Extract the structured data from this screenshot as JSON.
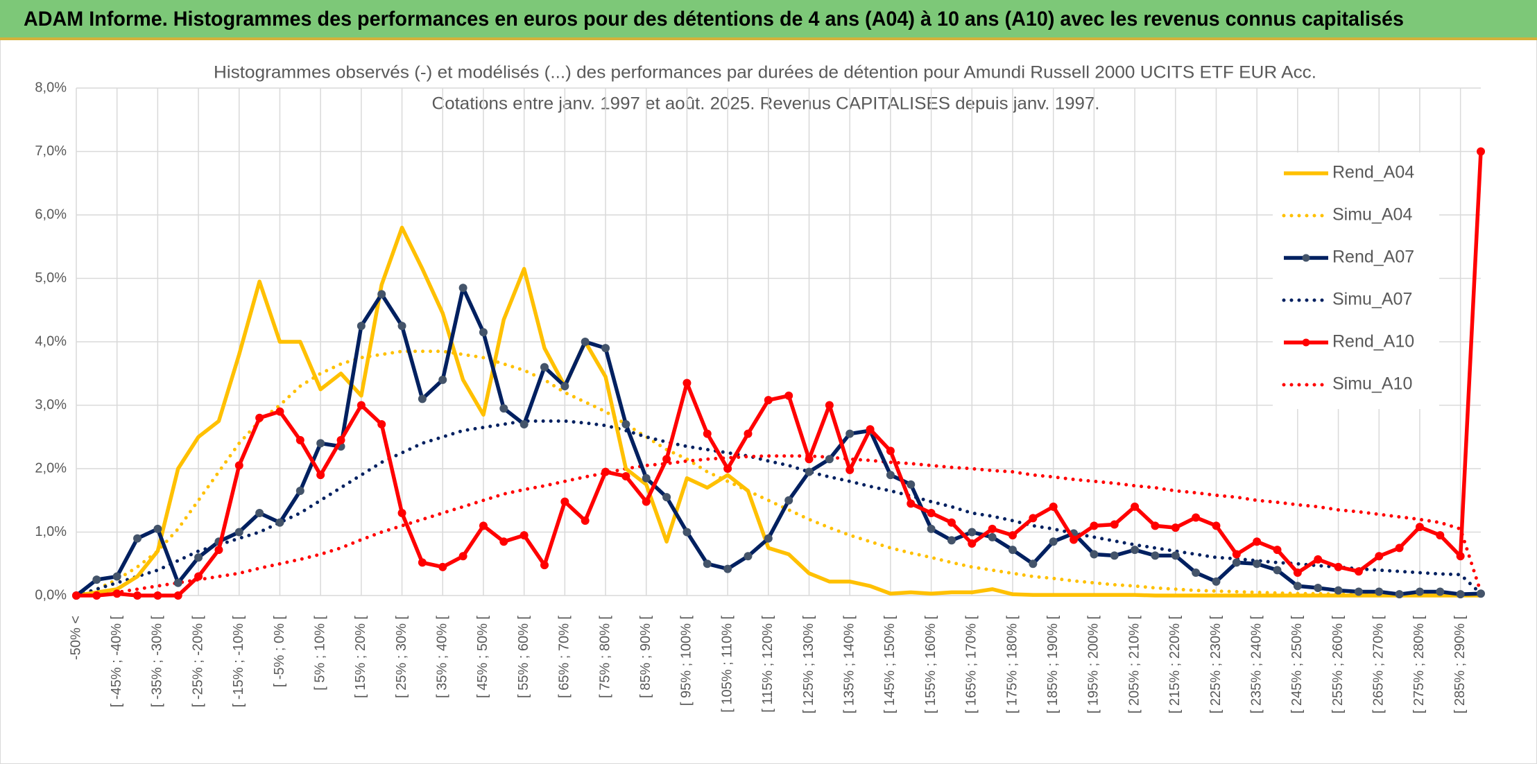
{
  "header": {
    "title": "ADAM Informe. Histogrammes des performances en euros pour des détentions de 4 ans (A04) à 10 ans (A10) avec les revenus connus capitalisés"
  },
  "chart_data": {
    "type": "line",
    "title": "Histogrammes observés (-) et modélisés (...) des performances par durées de détention pour Amundi Russell 2000 UCITS ETF EUR Acc.",
    "subtitle": "Cotations entre janv. 1997 et août. 2025. Revenus CAPITALISES depuis janv. 1997.",
    "categories": [
      "-50% <",
      null,
      "[ -45% ; -40% [",
      null,
      "[ -35% ; -30% [",
      null,
      "[ -25% ; -20% [",
      null,
      "[ -15% ; -10% [",
      null,
      "[ -5% ; 0% [",
      null,
      "[ 5% ; 10% [",
      null,
      "[ 15% ; 20% [",
      null,
      "[ 25% ; 30% [",
      null,
      "[ 35% ; 40% [",
      null,
      "[ 45% ; 50% [",
      null,
      "[ 55% ; 60% [",
      null,
      "[ 65% ; 70% [",
      null,
      "[ 75% ; 80% [",
      null,
      "[ 85% ; 90% [",
      null,
      "[ 95% ; 100% [",
      null,
      "[ 105% ; 110% [",
      null,
      "[ 115% ; 120% [",
      null,
      "[ 125% ; 130% [",
      null,
      "[ 135% ; 140% [",
      null,
      "[ 145% ; 150% [",
      null,
      "[ 155% ; 160% [",
      null,
      "[ 165% ; 170% [",
      null,
      "[ 175% ; 180% [",
      null,
      "[ 185% ; 190% [",
      null,
      "[ 195% ; 200% [",
      null,
      "[ 205% ; 210% [",
      null,
      "[ 215% ; 220% [",
      null,
      "[ 225% ; 230% [",
      null,
      "[ 235% ; 240% [",
      null,
      "[ 245% ; 250% [",
      null,
      "[ 255% ; 260% [",
      null,
      "[ 265% ; 270% [",
      null,
      "[ 275% ; 280% [",
      null,
      "[ 285% ; 290% [",
      null
    ],
    "series": [
      {
        "name": "Rend_A04",
        "color": "#FFC000",
        "line_style": "solid",
        "marker": false,
        "values": [
          0,
          0.05,
          0.1,
          0.3,
          0.7,
          2.0,
          2.5,
          2.75,
          3.8,
          4.95,
          4.0,
          4.0,
          3.25,
          3.5,
          3.15,
          4.9,
          5.8,
          5.15,
          4.45,
          3.4,
          2.85,
          4.35,
          5.15,
          3.9,
          3.3,
          4.0,
          3.45,
          2.0,
          1.75,
          0.85,
          1.85,
          1.7,
          1.9,
          1.65,
          0.75,
          0.65,
          0.35,
          0.22,
          0.22,
          0.15,
          0.03,
          0.05,
          0.03,
          0.05,
          0.05,
          0.1,
          0.02,
          0.01,
          0.01,
          0.01,
          0.01,
          0.01,
          0.01,
          0,
          0,
          0,
          0,
          0,
          0,
          0,
          0,
          0,
          0,
          0,
          0,
          0,
          0,
          0,
          0,
          0
        ]
      },
      {
        "name": "Simu_A04",
        "color": "#FFC000",
        "line_style": "dotted",
        "marker": false,
        "values": [
          0,
          0.1,
          0.25,
          0.45,
          0.7,
          1.05,
          1.5,
          1.95,
          2.4,
          2.75,
          3.0,
          3.3,
          3.5,
          3.65,
          3.75,
          3.8,
          3.85,
          3.85,
          3.85,
          3.8,
          3.75,
          3.65,
          3.55,
          3.4,
          3.2,
          3.05,
          2.9,
          2.7,
          2.5,
          2.3,
          2.15,
          1.95,
          1.8,
          1.65,
          1.5,
          1.35,
          1.2,
          1.07,
          0.95,
          0.85,
          0.75,
          0.67,
          0.6,
          0.52,
          0.45,
          0.4,
          0.35,
          0.3,
          0.27,
          0.23,
          0.2,
          0.17,
          0.15,
          0.12,
          0.1,
          0.08,
          0.07,
          0.06,
          0.05,
          0.04,
          0.03,
          0.03,
          0.02,
          0.02,
          0.02,
          0.01,
          0.01,
          0.01,
          0.01,
          0.01
        ]
      },
      {
        "name": "Rend_A07",
        "color": "#002060",
        "marker_color": "#44546A",
        "line_style": "solid",
        "marker": true,
        "values": [
          0,
          0.25,
          0.3,
          0.9,
          1.05,
          0.2,
          0.6,
          0.85,
          1.0,
          1.3,
          1.15,
          1.65,
          2.4,
          2.35,
          4.25,
          4.75,
          4.25,
          3.1,
          3.4,
          4.85,
          4.15,
          2.95,
          2.7,
          3.6,
          3.3,
          4.0,
          3.9,
          2.7,
          1.85,
          1.55,
          1.0,
          0.5,
          0.42,
          0.62,
          0.9,
          1.5,
          1.95,
          2.15,
          2.55,
          2.6,
          1.9,
          1.75,
          1.05,
          0.87,
          1.0,
          0.92,
          0.72,
          0.5,
          0.85,
          0.98,
          0.65,
          0.63,
          0.72,
          0.63,
          0.63,
          0.36,
          0.22,
          0.52,
          0.5,
          0.4,
          0.15,
          0.12,
          0.08,
          0.06,
          0.06,
          0.02,
          0.06,
          0.06,
          0.02,
          0.03
        ]
      },
      {
        "name": "Simu_A07",
        "color": "#002060",
        "line_style": "dotted",
        "marker": false,
        "values": [
          0,
          0.1,
          0.2,
          0.3,
          0.4,
          0.55,
          0.7,
          0.8,
          0.9,
          1.0,
          1.15,
          1.3,
          1.5,
          1.7,
          1.9,
          2.1,
          2.25,
          2.4,
          2.5,
          2.6,
          2.65,
          2.7,
          2.75,
          2.75,
          2.75,
          2.72,
          2.68,
          2.6,
          2.5,
          2.42,
          2.35,
          2.3,
          2.25,
          2.2,
          2.12,
          2.05,
          1.95,
          1.87,
          1.8,
          1.72,
          1.65,
          1.57,
          1.48,
          1.4,
          1.3,
          1.25,
          1.18,
          1.1,
          1.05,
          0.98,
          0.92,
          0.86,
          0.8,
          0.75,
          0.7,
          0.65,
          0.6,
          0.58,
          0.55,
          0.52,
          0.5,
          0.47,
          0.45,
          0.42,
          0.4,
          0.38,
          0.36,
          0.34,
          0.33,
          0.03
        ]
      },
      {
        "name": "Rend_A10",
        "color": "#FF0000",
        "marker_color": "#FF0000",
        "line_style": "solid",
        "marker": true,
        "values": [
          0,
          0,
          0.03,
          0,
          0,
          0,
          0.3,
          0.72,
          2.05,
          2.8,
          2.9,
          2.45,
          1.9,
          2.45,
          3.0,
          2.7,
          1.3,
          0.52,
          0.45,
          0.62,
          1.1,
          0.85,
          0.95,
          0.48,
          1.48,
          1.18,
          1.95,
          1.88,
          1.48,
          2.15,
          3.35,
          2.55,
          2.0,
          2.55,
          3.08,
          3.15,
          2.15,
          3.0,
          1.98,
          2.62,
          2.28,
          1.45,
          1.3,
          1.15,
          0.82,
          1.05,
          0.95,
          1.22,
          1.4,
          0.88,
          1.1,
          1.12,
          1.4,
          1.1,
          1.07,
          1.23,
          1.1,
          0.65,
          0.85,
          0.72,
          0.36,
          0.57,
          0.45,
          0.38,
          0.62,
          0.75,
          1.08,
          0.95,
          0.62,
          7.0
        ]
      },
      {
        "name": "Simu_A10",
        "color": "#FF0000",
        "line_style": "dotted",
        "marker": false,
        "values": [
          0,
          0.02,
          0.05,
          0.1,
          0.15,
          0.2,
          0.25,
          0.3,
          0.35,
          0.43,
          0.5,
          0.57,
          0.65,
          0.75,
          0.88,
          1.0,
          1.1,
          1.2,
          1.3,
          1.4,
          1.5,
          1.6,
          1.67,
          1.73,
          1.8,
          1.87,
          1.93,
          2.0,
          2.05,
          2.08,
          2.12,
          2.15,
          2.17,
          2.19,
          2.2,
          2.2,
          2.2,
          2.18,
          2.15,
          2.13,
          2.1,
          2.08,
          2.05,
          2.02,
          2.0,
          1.97,
          1.95,
          1.9,
          1.87,
          1.83,
          1.8,
          1.77,
          1.73,
          1.7,
          1.65,
          1.62,
          1.58,
          1.55,
          1.5,
          1.47,
          1.43,
          1.4,
          1.35,
          1.32,
          1.28,
          1.24,
          1.2,
          1.15,
          1.05,
          0.05
        ]
      }
    ],
    "ylim": [
      0,
      8
    ],
    "yticks": [
      {
        "value": 0,
        "label": "0,0%"
      },
      {
        "value": 1,
        "label": "1,0%"
      },
      {
        "value": 2,
        "label": "2,0%"
      },
      {
        "value": 3,
        "label": "3,0%"
      },
      {
        "value": 4,
        "label": "4,0%"
      },
      {
        "value": 5,
        "label": "5,0%"
      },
      {
        "value": 6,
        "label": "6,0%"
      },
      {
        "value": 7,
        "label": "7,0%"
      },
      {
        "value": 8,
        "label": "8,0%"
      }
    ],
    "grid": true,
    "legend": "right"
  }
}
